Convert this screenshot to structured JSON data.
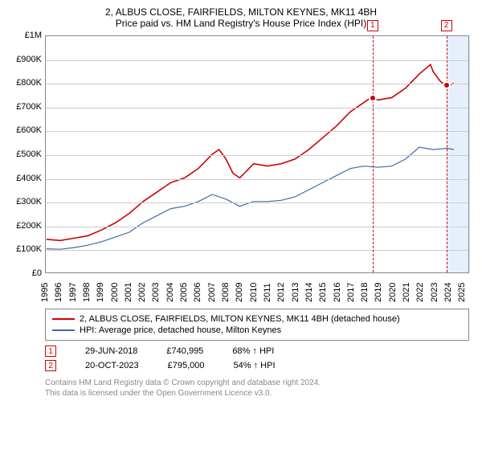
{
  "title": {
    "line1": "2, ALBUS CLOSE, FAIRFIELDS, MILTON KEYNES, MK11 4BH",
    "line2": "Price paid vs. HM Land Registry's House Price Index (HPI)"
  },
  "chart": {
    "type": "line",
    "background_color": "#ffffff",
    "grid_color": "#cccccc",
    "axis_color": "#888888",
    "yaxis": {
      "min": 0,
      "max": 1000000,
      "step": 100000,
      "labels": [
        "£0",
        "£100K",
        "£200K",
        "£300K",
        "£400K",
        "£500K",
        "£600K",
        "£700K",
        "£800K",
        "£900K",
        "£1M"
      ]
    },
    "xaxis": {
      "min": 1995,
      "max": 2025.5,
      "ticks": [
        1995,
        1996,
        1997,
        1998,
        1999,
        2000,
        2001,
        2002,
        2003,
        2004,
        2005,
        2006,
        2007,
        2008,
        2009,
        2010,
        2011,
        2012,
        2013,
        2014,
        2015,
        2016,
        2017,
        2018,
        2019,
        2020,
        2021,
        2022,
        2023,
        2024,
        2025
      ]
    },
    "shaded_region": {
      "start": 2023.8,
      "end": 2025.5
    },
    "series": [
      {
        "name": "property",
        "label": "2, ALBUS CLOSE, FAIRFIELDS, MILTON KEYNES, MK11 4BH (detached house)",
        "color": "#cc0000",
        "width": 1.6,
        "points": [
          [
            1995,
            140000
          ],
          [
            1996,
            135000
          ],
          [
            1997,
            145000
          ],
          [
            1998,
            155000
          ],
          [
            1999,
            180000
          ],
          [
            2000,
            210000
          ],
          [
            2001,
            250000
          ],
          [
            2002,
            300000
          ],
          [
            2003,
            340000
          ],
          [
            2004,
            380000
          ],
          [
            2005,
            400000
          ],
          [
            2006,
            440000
          ],
          [
            2007,
            500000
          ],
          [
            2007.5,
            520000
          ],
          [
            2008,
            480000
          ],
          [
            2008.5,
            420000
          ],
          [
            2009,
            400000
          ],
          [
            2009.5,
            430000
          ],
          [
            2010,
            460000
          ],
          [
            2011,
            450000
          ],
          [
            2012,
            460000
          ],
          [
            2013,
            480000
          ],
          [
            2014,
            520000
          ],
          [
            2015,
            570000
          ],
          [
            2016,
            620000
          ],
          [
            2017,
            680000
          ],
          [
            2018,
            720000
          ],
          [
            2018.5,
            740000
          ],
          [
            2019,
            730000
          ],
          [
            2020,
            740000
          ],
          [
            2021,
            780000
          ],
          [
            2022,
            840000
          ],
          [
            2022.8,
            880000
          ],
          [
            2023,
            850000
          ],
          [
            2023.5,
            810000
          ],
          [
            2023.8,
            795000
          ],
          [
            2024,
            790000
          ],
          [
            2024.5,
            800000
          ]
        ]
      },
      {
        "name": "hpi",
        "label": "HPI: Average price, detached house, Milton Keynes",
        "color": "#4169aa",
        "width": 1.2,
        "points": [
          [
            1995,
            100000
          ],
          [
            1996,
            98000
          ],
          [
            1997,
            105000
          ],
          [
            1998,
            115000
          ],
          [
            1999,
            130000
          ],
          [
            2000,
            150000
          ],
          [
            2001,
            170000
          ],
          [
            2002,
            210000
          ],
          [
            2003,
            240000
          ],
          [
            2004,
            270000
          ],
          [
            2005,
            280000
          ],
          [
            2006,
            300000
          ],
          [
            2007,
            330000
          ],
          [
            2008,
            310000
          ],
          [
            2009,
            280000
          ],
          [
            2010,
            300000
          ],
          [
            2011,
            300000
          ],
          [
            2012,
            305000
          ],
          [
            2013,
            320000
          ],
          [
            2014,
            350000
          ],
          [
            2015,
            380000
          ],
          [
            2016,
            410000
          ],
          [
            2017,
            440000
          ],
          [
            2018,
            450000
          ],
          [
            2019,
            445000
          ],
          [
            2020,
            450000
          ],
          [
            2021,
            480000
          ],
          [
            2022,
            530000
          ],
          [
            2023,
            520000
          ],
          [
            2024,
            525000
          ],
          [
            2024.5,
            520000
          ]
        ]
      }
    ],
    "sale_points": [
      {
        "n": 1,
        "x": 2018.5,
        "y": 740000,
        "color": "#cc0000"
      },
      {
        "n": 2,
        "x": 2023.8,
        "y": 795000,
        "color": "#cc0000"
      }
    ],
    "vlines": [
      {
        "x": 2018.5,
        "color": "#cc0000"
      },
      {
        "x": 2023.8,
        "color": "#cc0000"
      }
    ]
  },
  "legend": {
    "items": [
      {
        "color": "#cc0000",
        "label": "2, ALBUS CLOSE, FAIRFIELDS, MILTON KEYNES, MK11 4BH (detached house)"
      },
      {
        "color": "#4169aa",
        "label": "HPI: Average price, detached house, Milton Keynes"
      }
    ]
  },
  "sales": [
    {
      "n": "1",
      "date": "29-JUN-2018",
      "price": "£740,995",
      "delta": "68% ↑ HPI",
      "color": "#cc0000"
    },
    {
      "n": "2",
      "date": "20-OCT-2023",
      "price": "£795,000",
      "delta": "54% ↑ HPI",
      "color": "#cc0000"
    }
  ],
  "footer": {
    "line1": "Contains HM Land Registry data © Crown copyright and database right 2024.",
    "line2": "This data is licensed under the Open Government Licence v3.0."
  }
}
